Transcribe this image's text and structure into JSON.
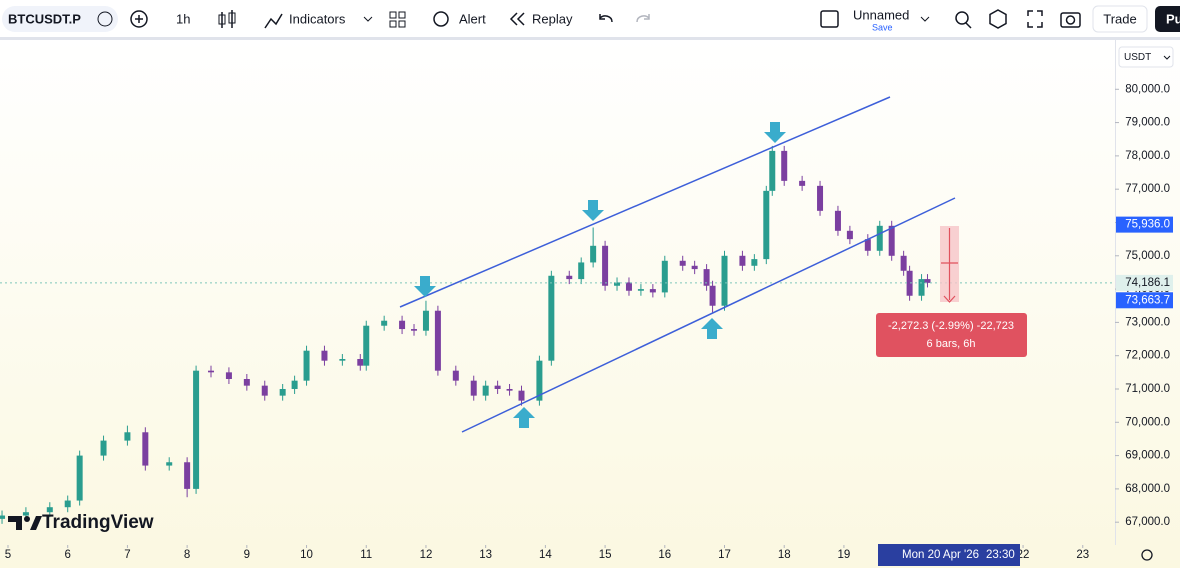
{
  "toolbar": {
    "symbol": "BTCUSDT.P",
    "interval": "1h",
    "indicators": "Indicators",
    "alert": "Alert",
    "replay": "Replay",
    "layout_name": "Unnamed",
    "save": "Save",
    "trade": "Trade",
    "publish": "Pu"
  },
  "chart_data": {
    "type": "candlestick",
    "currency": "USDT",
    "watermark": "TradingView",
    "x": [
      4.9,
      5.3,
      5.7,
      6.0,
      6.2,
      6.6,
      7.0,
      7.3,
      7.7,
      8.0,
      8.15,
      8.4,
      8.7,
      9.0,
      9.3,
      9.6,
      9.8,
      10.0,
      10.3,
      10.6,
      10.9,
      11.0,
      11.3,
      11.6,
      11.8,
      12.0,
      12.2,
      12.5,
      12.8,
      13.0,
      13.2,
      13.4,
      13.6,
      13.9,
      14.1,
      14.4,
      14.6,
      14.8,
      15.0,
      15.2,
      15.4,
      15.6,
      15.8,
      16.0,
      16.3,
      16.5,
      16.7,
      16.8,
      17.0,
      17.3,
      17.5,
      17.7,
      17.8,
      18.0,
      18.3,
      18.6,
      18.9,
      19.1,
      19.4,
      19.6,
      19.8,
      20.0,
      20.1,
      20.3,
      20.4
    ],
    "open": [
      67100,
      67200,
      67300,
      67450,
      67650,
      69000,
      69450,
      69700,
      68700,
      68800,
      68000,
      71550,
      71500,
      71300,
      71100,
      70800,
      71000,
      71250,
      72150,
      71850,
      71900,
      71700,
      72900,
      73050,
      72800,
      72750,
      73350,
      71550,
      71250,
      70800,
      71100,
      71000,
      70950,
      70650,
      71850,
      74400,
      74300,
      74800,
      75300,
      74100,
      74200,
      73950,
      74000,
      73900,
      74850,
      74700,
      74600,
      74100,
      73500,
      75000,
      74700,
      74900,
      76950,
      78150,
      77250,
      77100,
      76350,
      75750,
      75500,
      75150,
      75900,
      75000,
      74550,
      73800,
      74300
    ],
    "high": [
      67350,
      67450,
      67600,
      67800,
      69150,
      69600,
      69900,
      69850,
      68950,
      68950,
      71700,
      71700,
      71650,
      71450,
      71250,
      71150,
      71400,
      72300,
      72300,
      72050,
      72050,
      73050,
      73200,
      73200,
      72950,
      73650,
      73500,
      71700,
      71400,
      71250,
      71250,
      71150,
      71100,
      72000,
      74550,
      74550,
      74950,
      75850,
      75450,
      74350,
      74350,
      74150,
      74150,
      75000,
      75000,
      74850,
      74750,
      74250,
      75150,
      75150,
      75050,
      77100,
      78300,
      78300,
      77400,
      77250,
      76500,
      75900,
      75650,
      76050,
      76050,
      75150,
      74700,
      74450,
      74450
    ],
    "low": [
      66950,
      67050,
      67150,
      67300,
      67500,
      68850,
      69300,
      68550,
      68550,
      67750,
      67850,
      71350,
      71150,
      70950,
      70650,
      70650,
      70850,
      71100,
      71700,
      71700,
      71550,
      71550,
      72750,
      72650,
      72600,
      72600,
      71400,
      71100,
      70650,
      70650,
      70850,
      70800,
      70500,
      70500,
      71700,
      74150,
      74150,
      74650,
      73950,
      73950,
      73800,
      73800,
      73750,
      73750,
      74550,
      74450,
      73950,
      73300,
      73350,
      74550,
      74550,
      74750,
      76800,
      77100,
      76950,
      76200,
      75600,
      75350,
      75000,
      75000,
      74850,
      74400,
      73650,
      73650,
      74050
    ],
    "close": [
      67200,
      67300,
      67450,
      67650,
      69000,
      69450,
      69700,
      68700,
      68800,
      68000,
      71550,
      71500,
      71300,
      71100,
      70800,
      71000,
      71250,
      72150,
      71850,
      71900,
      71700,
      72900,
      73050,
      72800,
      72750,
      73350,
      71550,
      71250,
      70800,
      71100,
      71000,
      70950,
      70650,
      71850,
      74400,
      74300,
      74800,
      75300,
      74100,
      74200,
      73950,
      74000,
      73900,
      74850,
      74700,
      74600,
      74100,
      73500,
      75000,
      74700,
      74900,
      76950,
      78150,
      77250,
      77100,
      76350,
      75750,
      75500,
      75150,
      75900,
      75000,
      74550,
      73800,
      74300,
      74186
    ],
    "up_color": "#2a9d8f",
    "down_color": "#7b3fa0",
    "xlim": [
      4.866,
      23.54
    ],
    "xticks": [
      5,
      6,
      7,
      8,
      9,
      10,
      11,
      12,
      13,
      14,
      15,
      16,
      17,
      18,
      19,
      22,
      23
    ],
    "ylim": [
      66315,
      81480
    ],
    "yticks": [
      {
        "value": 67000,
        "label": "67,000.0"
      },
      {
        "value": 68000,
        "label": "68,000.0"
      },
      {
        "value": 69000,
        "label": "69,000.0"
      },
      {
        "value": 70000,
        "label": "70,000.0"
      },
      {
        "value": 71000,
        "label": "71,000.0"
      },
      {
        "value": 72000,
        "label": "72,000.0"
      },
      {
        "value": 73000,
        "label": "73,000.0"
      },
      {
        "value": 74000,
        "label": "74,000.0"
      },
      {
        "value": 75000,
        "label": "75,000.0"
      },
      {
        "value": 76000,
        "label": "76,000.0"
      },
      {
        "value": 77000,
        "label": "77,000.0"
      },
      {
        "value": 78000,
        "label": "78,000.0"
      },
      {
        "value": 79000,
        "label": "79,000.0"
      },
      {
        "value": 80000,
        "label": "80,000.0"
      }
    ],
    "price_labels": [
      {
        "value": 75936.0,
        "label": "75,936.0",
        "color": "#2962ff"
      },
      {
        "value": 74186.1,
        "label": "74,186.1",
        "color": "#dff0ec"
      },
      {
        "value": 73663.7,
        "label": "73,663.7",
        "color": "#2962ff"
      }
    ],
    "crosshair": {
      "date": "Mon 20 Apr '26",
      "time": "23:30"
    },
    "measure": {
      "change": "-2,272.3 (-2.99%) -22,723",
      "range": "6 bars, 6h"
    }
  }
}
